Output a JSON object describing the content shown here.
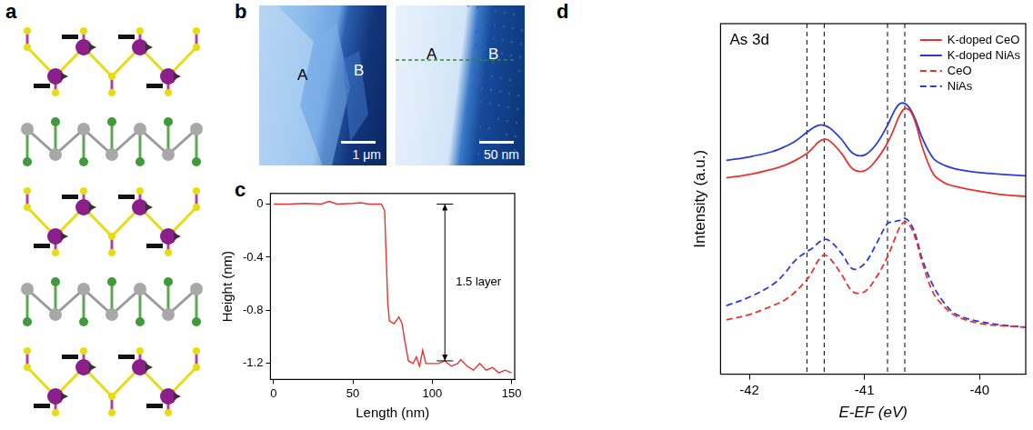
{
  "panel_letters": [
    "a",
    "b",
    "c",
    "d"
  ],
  "panel_b_images": [
    {
      "labels": [
        "A",
        "B"
      ],
      "scale_bar": "1 μm"
    },
    {
      "labels": [
        "A",
        "B"
      ],
      "scale_bar": "50 nm"
    }
  ],
  "chart_data": [
    {
      "type": "line",
      "x_label": "Length (nm)",
      "y_label": "Height (nm)",
      "x": [
        0,
        10,
        20,
        30,
        35,
        40,
        50,
        55,
        60,
        68,
        70,
        71,
        72,
        73,
        76,
        79,
        81,
        83,
        85,
        88,
        90,
        92,
        94,
        96,
        100,
        104,
        108,
        112,
        116,
        118,
        122,
        126,
        130,
        134,
        138,
        142,
        146,
        150
      ],
      "values": [
        0,
        0,
        0.005,
        0,
        0.02,
        0,
        0.005,
        0.01,
        0,
        0,
        -0.05,
        -0.4,
        -0.75,
        -0.88,
        -0.9,
        -0.85,
        -0.9,
        -1.05,
        -1.18,
        -1.2,
        -1.15,
        -1.22,
        -1.1,
        -1.2,
        -1.2,
        -1.2,
        -1.18,
        -1.22,
        -1.2,
        -1.17,
        -1.22,
        -1.25,
        -1.2,
        -1.25,
        -1.23,
        -1.27,
        -1.25,
        -1.27
      ],
      "color": "#e8322f",
      "xlim": [
        -2,
        152
      ],
      "xticks": [
        0,
        50,
        100,
        150
      ],
      "ylim": [
        -1.32,
        0.08
      ],
      "yticks": [
        0,
        -0.4,
        -0.8,
        -1.2
      ],
      "grid": false,
      "annotations": [
        {
          "text": "1.5 layer",
          "x": 108,
          "y_from": 0,
          "y_to": -1.18
        }
      ]
    },
    {
      "type": "line",
      "annotation": "As 3d",
      "x_label": "E-EF (eV)",
      "y_label": "Intensity (a.u.)",
      "x": [
        -42.2,
        -42.0,
        -41.8,
        -41.7,
        -41.6,
        -41.5,
        -41.45,
        -41.4,
        -41.35,
        -41.3,
        -41.2,
        -41.1,
        -41.0,
        -40.9,
        -40.8,
        -40.75,
        -40.7,
        -40.65,
        -40.6,
        -40.55,
        -40.5,
        -40.4,
        -40.3,
        -40.2,
        -40.0,
        -39.8,
        -39.6
      ],
      "series": [
        {
          "name": "K-doped CeO",
          "color": "#e8322f",
          "line_style": "solid",
          "values": [
            5.6,
            5.7,
            5.85,
            5.95,
            6.1,
            6.3,
            6.45,
            6.62,
            6.7,
            6.65,
            6.3,
            5.85,
            5.8,
            6.1,
            6.6,
            6.95,
            7.35,
            7.58,
            7.5,
            7.1,
            6.5,
            5.7,
            5.45,
            5.35,
            5.22,
            5.12,
            5.07
          ]
        },
        {
          "name": "K-doped NiAs",
          "color": "#2a3bd9",
          "line_style": "solid",
          "values": [
            6.1,
            6.2,
            6.35,
            6.48,
            6.65,
            6.9,
            7.02,
            7.1,
            7.1,
            7.02,
            6.7,
            6.3,
            6.25,
            6.55,
            7.1,
            7.45,
            7.7,
            7.72,
            7.55,
            7.2,
            6.75,
            6.15,
            5.95,
            5.85,
            5.75,
            5.7,
            5.66
          ]
        },
        {
          "name": "CeO",
          "color": "#e8322f",
          "line_style": "dashed",
          "values": [
            1.55,
            1.7,
            1.95,
            2.1,
            2.35,
            2.7,
            2.95,
            3.25,
            3.4,
            3.3,
            2.85,
            2.35,
            2.35,
            2.75,
            3.35,
            3.75,
            4.15,
            4.35,
            4.2,
            3.8,
            3.2,
            2.3,
            1.9,
            1.65,
            1.45,
            1.38,
            1.34
          ]
        },
        {
          "name": "NiAs",
          "color": "#2a3bd9",
          "line_style": "dashed",
          "values": [
            1.95,
            2.2,
            2.55,
            2.85,
            3.25,
            3.5,
            3.6,
            3.75,
            3.85,
            3.8,
            3.45,
            3.0,
            3.15,
            3.7,
            4.3,
            4.35,
            4.38,
            4.45,
            4.3,
            3.9,
            3.3,
            2.5,
            2.0,
            1.7,
            1.5,
            1.4,
            1.34
          ]
        }
      ],
      "reference_lines": [
        -41.5,
        -41.35,
        -40.8,
        -40.65
      ],
      "xlim": [
        -42.25,
        -39.6
      ],
      "xticks": [
        -42,
        -41,
        -40
      ],
      "ylim": [
        0,
        10
      ],
      "yticks": [],
      "tick_labels": "x",
      "grid": false,
      "legend": "upper right"
    }
  ]
}
